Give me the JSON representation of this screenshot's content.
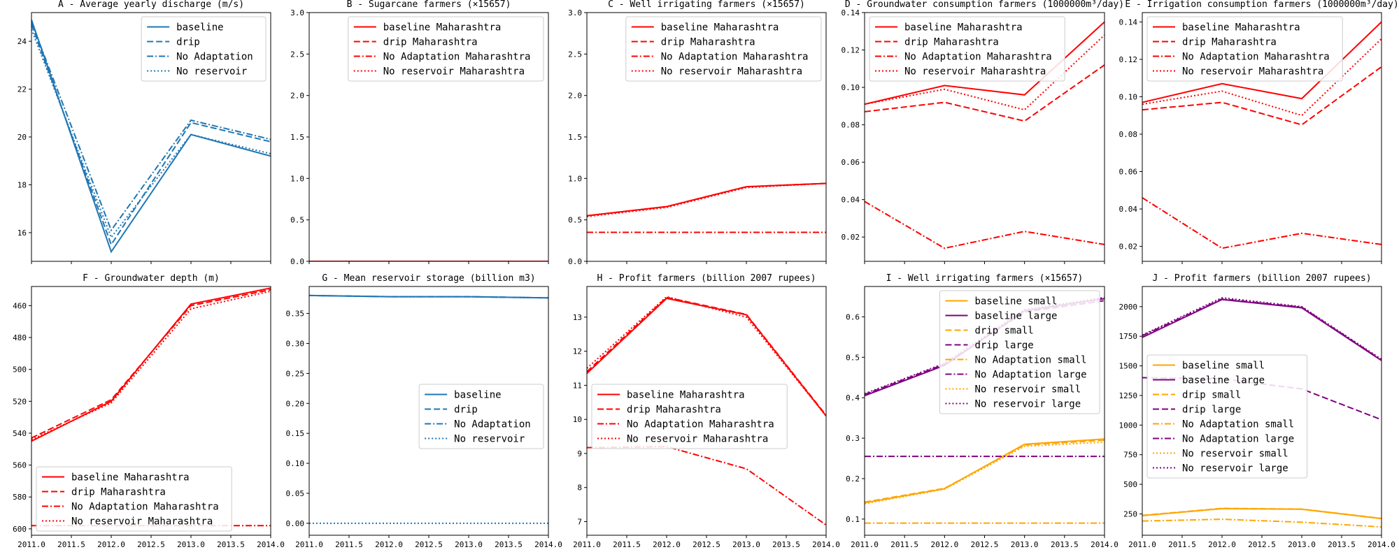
{
  "colors": {
    "red": "#ff0000",
    "blue": "#1f77b4",
    "orange": "#ffa500",
    "purple": "#800080"
  },
  "chart_data": [
    {
      "id": "A",
      "type": "line",
      "title": "A - Average yearly discharge (m/s)",
      "x": [
        2011,
        2012,
        2013,
        2014
      ],
      "ylim": [
        14.8,
        25.2
      ],
      "yticks": [
        16,
        18,
        20,
        22,
        24
      ],
      "show_xticks": false,
      "legend": "top-right",
      "series": [
        {
          "name": "baseline",
          "style": "solid",
          "color": "#1f77b4",
          "values": [
            24.9,
            15.2,
            20.1,
            19.2
          ]
        },
        {
          "name": "drip",
          "style": "dashed",
          "color": "#1f77b4",
          "values": [
            24.7,
            15.5,
            20.6,
            19.8
          ]
        },
        {
          "name": "No Adaptation",
          "style": "dashdot",
          "color": "#1f77b4",
          "values": [
            24.8,
            16.1,
            20.7,
            19.9
          ]
        },
        {
          "name": "No reservoir",
          "style": "dotted",
          "color": "#1f77b4",
          "values": [
            24.5,
            15.8,
            20.1,
            19.3
          ]
        }
      ]
    },
    {
      "id": "B",
      "type": "line",
      "title": "B - Sugarcane farmers (×15657)",
      "x": [
        2011,
        2012,
        2013,
        2014
      ],
      "ylim": [
        0,
        3.0
      ],
      "yticks": [
        0.0,
        0.5,
        1.0,
        1.5,
        2.0,
        2.5,
        3.0
      ],
      "show_xticks": false,
      "legend": "top-right",
      "series": [
        {
          "name": "baseline Maharashtra",
          "style": "solid",
          "color": "#ff0000",
          "values": [
            0,
            0,
            0,
            0
          ]
        },
        {
          "name": "drip Maharashtra",
          "style": "dashed",
          "color": "#ff0000",
          "values": [
            0,
            0,
            0,
            0
          ]
        },
        {
          "name": "No Adaptation Maharashtra",
          "style": "dashdot",
          "color": "#ff0000",
          "values": [
            0,
            0,
            0,
            0
          ]
        },
        {
          "name": "No reservoir Maharashtra",
          "style": "dotted",
          "color": "#ff0000",
          "values": [
            0,
            0,
            0,
            0
          ]
        }
      ]
    },
    {
      "id": "C",
      "type": "line",
      "title": "C - Well irrigating farmers (×15657)",
      "x": [
        2011,
        2012,
        2013,
        2014
      ],
      "ylim": [
        0,
        3.0
      ],
      "yticks": [
        0.0,
        0.5,
        1.0,
        1.5,
        2.0,
        2.5,
        3.0
      ],
      "show_xticks": false,
      "legend": "top-right",
      "series": [
        {
          "name": "baseline Maharashtra",
          "style": "solid",
          "color": "#ff0000",
          "values": [
            0.55,
            0.66,
            0.9,
            0.94
          ]
        },
        {
          "name": "drip Maharashtra",
          "style": "dashed",
          "color": "#ff0000",
          "values": [
            0.55,
            0.66,
            0.9,
            0.94
          ]
        },
        {
          "name": "No Adaptation Maharashtra",
          "style": "dashdot",
          "color": "#ff0000",
          "values": [
            0.35,
            0.35,
            0.35,
            0.35
          ]
        },
        {
          "name": "No reservoir Maharashtra",
          "style": "dotted",
          "color": "#ff0000",
          "values": [
            0.54,
            0.65,
            0.89,
            0.94
          ]
        }
      ]
    },
    {
      "id": "D",
      "type": "line",
      "title": "D - Groundwater consumption farmers (1000000m³/day)",
      "x": [
        2011,
        2012,
        2013,
        2014
      ],
      "ylim": [
        0.007,
        0.14
      ],
      "yticks": [
        0.02,
        0.04,
        0.06,
        0.08,
        0.1,
        0.12,
        0.14
      ],
      "show_xticks": false,
      "legend": "top-left",
      "series": [
        {
          "name": "baseline Maharashtra",
          "style": "solid",
          "color": "#ff0000",
          "values": [
            0.091,
            0.101,
            0.096,
            0.135
          ]
        },
        {
          "name": "drip Maharashtra",
          "style": "dashed",
          "color": "#ff0000",
          "values": [
            0.087,
            0.092,
            0.082,
            0.112
          ]
        },
        {
          "name": "No Adaptation Maharashtra",
          "style": "dashdot",
          "color": "#ff0000",
          "values": [
            0.039,
            0.014,
            0.023,
            0.016
          ]
        },
        {
          "name": "No reservoir Maharashtra",
          "style": "dotted",
          "color": "#ff0000",
          "values": [
            0.091,
            0.099,
            0.088,
            0.128
          ]
        }
      ]
    },
    {
      "id": "E",
      "type": "line",
      "title": "E - Irrigation consumption farmers (1000000m³/day)",
      "x": [
        2011,
        2012,
        2013,
        2014
      ],
      "ylim": [
        0.012,
        0.145
      ],
      "yticks": [
        0.02,
        0.04,
        0.06,
        0.08,
        0.1,
        0.12,
        0.14
      ],
      "show_xticks": false,
      "legend": "top-left",
      "series": [
        {
          "name": "baseline Maharashtra",
          "style": "solid",
          "color": "#ff0000",
          "values": [
            0.097,
            0.107,
            0.099,
            0.14
          ]
        },
        {
          "name": "drip Maharashtra",
          "style": "dashed",
          "color": "#ff0000",
          "values": [
            0.093,
            0.097,
            0.085,
            0.116
          ]
        },
        {
          "name": "No Adaptation Maharashtra",
          "style": "dashdot",
          "color": "#ff0000",
          "values": [
            0.046,
            0.019,
            0.027,
            0.021
          ]
        },
        {
          "name": "No reservoir Maharashtra",
          "style": "dotted",
          "color": "#ff0000",
          "values": [
            0.096,
            0.103,
            0.09,
            0.131
          ]
        }
      ]
    },
    {
      "id": "F",
      "type": "line",
      "title": "F - Groundwater depth (m)",
      "x": [
        2011,
        2012,
        2013,
        2014
      ],
      "ylim": [
        604,
        448
      ],
      "inverted_y": true,
      "yticks": [
        460,
        480,
        500,
        520,
        540,
        560,
        580,
        600
      ],
      "xticks": [
        2011.0,
        2011.5,
        2012.0,
        2012.5,
        2013.0,
        2013.5,
        2014.0
      ],
      "show_xticks": true,
      "legend": "bottom-left",
      "series": [
        {
          "name": "baseline Maharashtra",
          "style": "solid",
          "color": "#ff0000",
          "values": [
            545,
            520,
            459,
            449
          ]
        },
        {
          "name": "drip Maharashtra",
          "style": "dashed",
          "color": "#ff0000",
          "values": [
            543,
            519,
            460,
            450
          ]
        },
        {
          "name": "No Adaptation Maharashtra",
          "style": "dashdot",
          "color": "#ff0000",
          "values": [
            598,
            598,
            598,
            598
          ]
        },
        {
          "name": "No reservoir Maharashtra",
          "style": "dotted",
          "color": "#ff0000",
          "values": [
            544,
            521,
            462,
            451
          ]
        }
      ]
    },
    {
      "id": "G",
      "type": "line",
      "title": "G - Mean reservoir storage (billion m3)",
      "x": [
        2011,
        2012,
        2013,
        2014
      ],
      "ylim": [
        -0.02,
        0.395
      ],
      "yticks": [
        0.0,
        0.05,
        0.1,
        0.15,
        0.2,
        0.25,
        0.3,
        0.35
      ],
      "xticks": [
        2011.0,
        2011.5,
        2012.0,
        2012.5,
        2013.0,
        2013.5,
        2014.0
      ],
      "show_xticks": true,
      "legend": "center-right",
      "series": [
        {
          "name": "baseline",
          "style": "solid",
          "color": "#1f77b4",
          "values": [
            0.38,
            0.378,
            0.378,
            0.376
          ]
        },
        {
          "name": "drip",
          "style": "dashed",
          "color": "#1f77b4",
          "values": [
            0.38,
            0.378,
            0.378,
            0.376
          ]
        },
        {
          "name": "No Adaptation",
          "style": "dashdot",
          "color": "#1f77b4",
          "values": [
            0.38,
            0.378,
            0.378,
            0.376
          ]
        },
        {
          "name": "No reservoir",
          "style": "dotted",
          "color": "#1f77b4",
          "values": [
            0.0,
            0.0,
            0.0,
            0.0
          ]
        }
      ]
    },
    {
      "id": "H",
      "type": "line",
      "title": "H - Profit farmers (billion 2007 rupees)",
      "x": [
        2011,
        2012,
        2013,
        2014
      ],
      "ylim": [
        6.6,
        13.9
      ],
      "yticks": [
        7,
        8,
        9,
        10,
        11,
        12,
        13
      ],
      "xticks": [
        2011.0,
        2011.5,
        2012.0,
        2012.5,
        2013.0,
        2013.5,
        2014.0
      ],
      "show_xticks": true,
      "legend": "center-left",
      "series": [
        {
          "name": "baseline Maharashtra",
          "style": "solid",
          "color": "#ff0000",
          "values": [
            11.35,
            13.55,
            13.07,
            10.1
          ]
        },
        {
          "name": "drip Maharashtra",
          "style": "dashed",
          "color": "#ff0000",
          "values": [
            11.4,
            13.58,
            13.08,
            10.12
          ]
        },
        {
          "name": "No Adaptation Maharashtra",
          "style": "dashdot",
          "color": "#ff0000",
          "values": [
            9.17,
            9.2,
            8.55,
            6.9
          ]
        },
        {
          "name": "No reservoir Maharashtra",
          "style": "dotted",
          "color": "#ff0000",
          "values": [
            11.5,
            13.6,
            13.0,
            10.1
          ]
        }
      ]
    },
    {
      "id": "I",
      "type": "line",
      "title": "I - Well irrigating farmers (×15657)",
      "x": [
        2011,
        2012,
        2013,
        2014
      ],
      "ylim": [
        0.06,
        0.675
      ],
      "yticks": [
        0.1,
        0.2,
        0.3,
        0.4,
        0.5,
        0.6
      ],
      "xticks": [
        2011.0,
        2011.5,
        2012.0,
        2012.5,
        2013.0,
        2013.5,
        2014.0
      ],
      "show_xticks": true,
      "legend": "top-right",
      "series": [
        {
          "name": "baseline small",
          "style": "solid",
          "color": "#ffa500",
          "values": [
            0.14,
            0.175,
            0.285,
            0.298
          ]
        },
        {
          "name": "baseline large",
          "style": "solid",
          "color": "#800080",
          "values": [
            0.405,
            0.48,
            0.615,
            0.645
          ]
        },
        {
          "name": "drip small",
          "style": "dashed",
          "color": "#ffa500",
          "values": [
            0.142,
            0.176,
            0.283,
            0.295
          ]
        },
        {
          "name": "drip large",
          "style": "dashed",
          "color": "#800080",
          "values": [
            0.408,
            0.483,
            0.612,
            0.64
          ]
        },
        {
          "name": "No Adaptation small",
          "style": "dashdot",
          "color": "#ffa500",
          "values": [
            0.09,
            0.09,
            0.09,
            0.09
          ]
        },
        {
          "name": "No Adaptation large",
          "style": "dashdot",
          "color": "#800080",
          "values": [
            0.255,
            0.255,
            0.255,
            0.255
          ]
        },
        {
          "name": "No reservoir small",
          "style": "dotted",
          "color": "#ffa500",
          "values": [
            0.138,
            0.174,
            0.28,
            0.29
          ]
        },
        {
          "name": "No reservoir large",
          "style": "dotted",
          "color": "#800080",
          "values": [
            0.41,
            0.485,
            0.618,
            0.648
          ]
        }
      ]
    },
    {
      "id": "J",
      "type": "line",
      "title": "J - Profit farmers (billion 2007 rupees)",
      "x": [
        2011,
        2012,
        2013,
        2014
      ],
      "ylim": [
        70,
        2170
      ],
      "yticks": [
        250,
        500,
        750,
        1000,
        1250,
        1500,
        1750,
        2000
      ],
      "xticks": [
        2011.0,
        2011.5,
        2012.0,
        2012.5,
        2013.0,
        2013.5,
        2014.0
      ],
      "show_xticks": true,
      "legend": "center-left",
      "series": [
        {
          "name": "baseline small",
          "style": "solid",
          "color": "#ffa500",
          "values": [
            235,
            295,
            290,
            210
          ]
        },
        {
          "name": "baseline large",
          "style": "solid",
          "color": "#800080",
          "values": [
            1740,
            2060,
            1990,
            1545
          ]
        },
        {
          "name": "drip small",
          "style": "dashed",
          "color": "#ffa500",
          "values": [
            238,
            297,
            291,
            212
          ]
        },
        {
          "name": "drip large",
          "style": "dashed",
          "color": "#800080",
          "values": [
            1400,
            1390,
            1305,
            1045
          ]
        },
        {
          "name": "No Adaptation small",
          "style": "dashdot",
          "color": "#ffa500",
          "values": [
            190,
            205,
            180,
            140
          ]
        },
        {
          "name": "No Adaptation large",
          "style": "dashdot",
          "color": "#800080",
          "values": [
            1755,
            2065,
            1995,
            1550
          ]
        },
        {
          "name": "No reservoir small",
          "style": "dotted",
          "color": "#ffa500",
          "values": [
            236,
            294,
            289,
            211
          ]
        },
        {
          "name": "No reservoir large",
          "style": "dotted",
          "color": "#800080",
          "values": [
            1760,
            2075,
            2000,
            1555
          ]
        }
      ]
    }
  ]
}
